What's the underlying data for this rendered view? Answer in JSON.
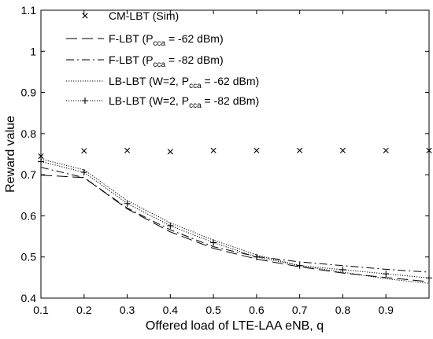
{
  "chart_data": {
    "type": "line",
    "xlabel": "Offered load of LTE-LAA eNB, q",
    "ylabel": "Reward value",
    "xlim": [
      0.1,
      1.0
    ],
    "ylim": [
      0.4,
      1.1
    ],
    "xticks": [
      0.1,
      0.2,
      0.3,
      0.4,
      0.5,
      0.6,
      0.7,
      0.8,
      0.9
    ],
    "yticks": [
      0.4,
      0.5,
      0.6,
      0.7,
      0.8,
      0.9,
      1.0,
      1.1
    ],
    "xtick_labels": [
      "0.1",
      "0.2",
      "0.3",
      "0.4",
      "0.5",
      "0.6",
      "0.7",
      "0.8",
      "0.9"
    ],
    "ytick_labels": [
      "0.4",
      "0.5",
      "0.6",
      "0.7",
      "0.8",
      "0.9",
      "1",
      "1.1"
    ],
    "grid": false,
    "legend_position": "top-left",
    "series": [
      {
        "name": "CM-LBT (Sim)",
        "style": "markers-x",
        "x": [
          0.1,
          0.2,
          0.3,
          0.4,
          0.5,
          0.6,
          0.7,
          0.8,
          0.9,
          1.0
        ],
        "y": [
          0.745,
          0.758,
          0.759,
          0.756,
          0.759,
          0.759,
          0.759,
          0.759,
          0.759,
          0.759
        ]
      },
      {
        "name": "F-LBT   (P_cca = -62 dBm)",
        "style": "dashed",
        "x": [
          0.1,
          0.2,
          0.3,
          0.4,
          0.5,
          0.6,
          0.7,
          0.8,
          0.9,
          1.0
        ],
        "y": [
          0.699,
          0.693,
          0.617,
          0.561,
          0.521,
          0.495,
          0.476,
          0.461,
          0.45,
          0.44
        ]
      },
      {
        "name": "F-LBT   (P_cca = -82 dBm)",
        "style": "dashdot",
        "x": [
          0.1,
          0.2,
          0.3,
          0.4,
          0.5,
          0.6,
          0.7,
          0.8,
          0.9,
          1.0
        ],
        "y": [
          0.718,
          0.693,
          0.619,
          0.566,
          0.525,
          0.501,
          0.488,
          0.479,
          0.47,
          0.463
        ]
      },
      {
        "name": "LB-LBT (W=2, P_cca = -62 dBm)",
        "style": "dotted",
        "x": [
          0.1,
          0.2,
          0.3,
          0.4,
          0.5,
          0.6,
          0.7,
          0.8,
          0.9,
          1.0
        ],
        "y": [
          0.738,
          0.712,
          0.637,
          0.583,
          0.541,
          0.505,
          0.479,
          0.463,
          0.447,
          0.436
        ]
      },
      {
        "name": "LB-LBT (W=2, P_cca = -82 dBm)",
        "style": "dotted-plus",
        "x": [
          0.1,
          0.2,
          0.3,
          0.4,
          0.5,
          0.6,
          0.7,
          0.8,
          0.9,
          1.0
        ],
        "y": [
          0.732,
          0.706,
          0.63,
          0.576,
          0.535,
          0.5,
          0.479,
          0.469,
          0.459,
          0.449
        ]
      }
    ]
  },
  "legend": [
    {
      "pre": "CM-LBT (Sim)",
      "sub": "",
      "post": ""
    },
    {
      "pre": "F-LBT   (P",
      "sub": "cca",
      "post": " = -62 dBm)"
    },
    {
      "pre": "F-LBT   (P",
      "sub": "cca",
      "post": " = -82 dBm)"
    },
    {
      "pre": "LB-LBT (W=2, P",
      "sub": "cca",
      "post": " = -62 dBm)"
    },
    {
      "pre": "LB-LBT (W=2, P",
      "sub": "cca",
      "post": " = -82 dBm)"
    }
  ]
}
